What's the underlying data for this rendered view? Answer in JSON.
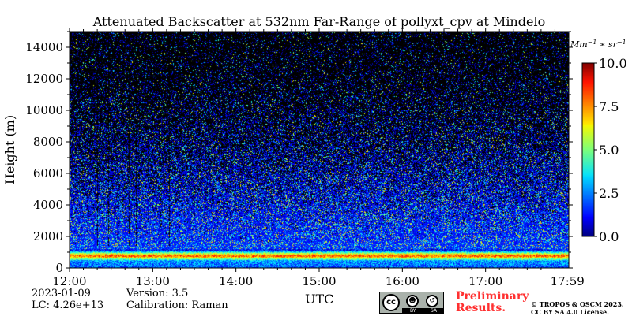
{
  "chart_data": {
    "type": "heatmap",
    "title": "Attenuated Backscatter at 532nm Far-Range of pollyxt_cpv at Mindelo",
    "xlabel": "UTC",
    "ylabel": "Height (m)",
    "x_ticks": [
      "12:00",
      "13:00",
      "14:00",
      "15:00",
      "16:00",
      "17:00",
      "17:59"
    ],
    "x_range": [
      "12:00",
      "17:59"
    ],
    "y_ticks": [
      0,
      2000,
      4000,
      6000,
      8000,
      10000,
      12000,
      14000
    ],
    "ylim": [
      0,
      15000
    ],
    "colorbar": {
      "label": "Mm^-1 * sr^-1",
      "ticks": [
        "0.0",
        "2.5",
        "5.0",
        "7.5",
        "10.0"
      ],
      "range": [
        0,
        10
      ],
      "colormap": "jet"
    },
    "background_color": "#000000",
    "height_profile": [
      {
        "height": 0,
        "backscatter": 2.0
      },
      {
        "height": 200,
        "backscatter": 2.5
      },
      {
        "height": 450,
        "backscatter": 2.7
      },
      {
        "height": 600,
        "backscatter": 5.5
      },
      {
        "height": 750,
        "backscatter": 8.0
      },
      {
        "height": 900,
        "backscatter": 6.0
      },
      {
        "height": 1100,
        "backscatter": 1.5
      },
      {
        "height": 2000,
        "backscatter": 1.2
      },
      {
        "height": 3000,
        "backscatter": 1.1
      },
      {
        "height": 4000,
        "backscatter": 1.0
      },
      {
        "height": 6000,
        "backscatter": 0.9
      },
      {
        "height": 8000,
        "backscatter": 0.8
      },
      {
        "height": 10000,
        "backscatter": 0.7
      },
      {
        "height": 12000,
        "backscatter": 0.6
      },
      {
        "height": 15000,
        "backscatter": 0.5
      }
    ],
    "signal_coverage_by_height": [
      {
        "height": 1500,
        "coverage": 1.0
      },
      {
        "height": 2500,
        "coverage": 0.95
      },
      {
        "height": 4000,
        "coverage": 0.8
      },
      {
        "height": 6000,
        "coverage": 0.6
      },
      {
        "height": 8000,
        "coverage": 0.4
      },
      {
        "height": 10000,
        "coverage": 0.28
      },
      {
        "height": 12000,
        "coverage": 0.2
      },
      {
        "height": 15000,
        "coverage": 0.14
      }
    ],
    "gaps_utc": [
      "12:13",
      "12:20",
      "12:28",
      "12:35",
      "12:43",
      "12:48",
      "13:05",
      "13:12"
    ]
  },
  "footer": {
    "date": "2023-01-09",
    "lc": "LC: 4.26e+13",
    "version": "Version: 3.5",
    "calibration": "Calibration: Raman",
    "xlabel_note": "UTC",
    "preliminary_line1": "Preliminary",
    "preliminary_line2": "Results.",
    "copyright_line1": "© TROPOS & OSCM 2023.",
    "copyright_line2": "CC BY SA 4.0 License."
  },
  "license_badge": {
    "cc": "cc",
    "by": "BY",
    "sa": "SA"
  },
  "colors": {
    "preliminary_text": "#ff3030",
    "no_signal": "#000000"
  }
}
